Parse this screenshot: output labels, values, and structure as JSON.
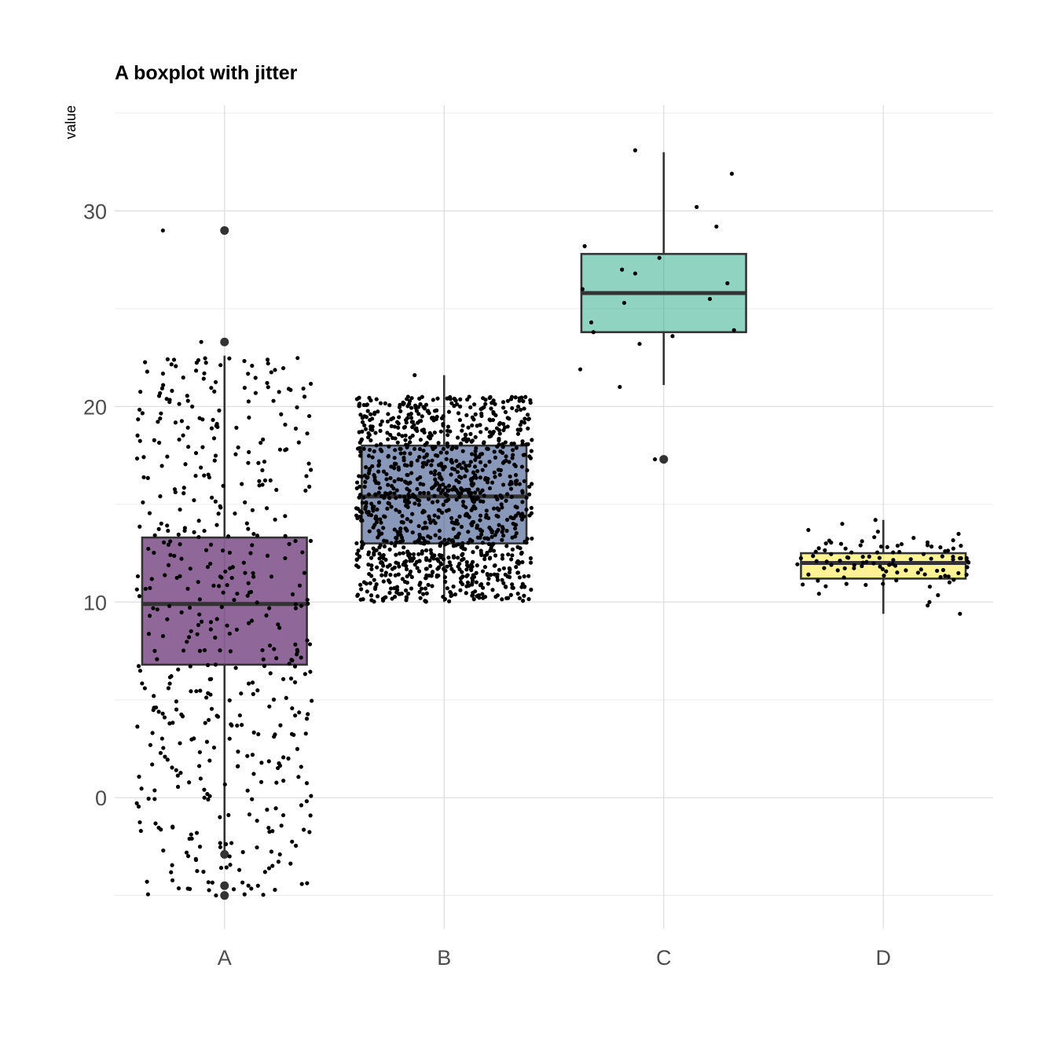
{
  "chart_data": {
    "type": "boxplot",
    "title": "A boxplot with jitter",
    "xlabel": "",
    "ylabel": "value",
    "ylim": [
      -6.7,
      35.4
    ],
    "y_ticks": [
      0,
      10,
      20,
      30
    ],
    "grid": true,
    "legend": "none",
    "categories": [
      "A",
      "B",
      "C",
      "D"
    ],
    "boxes": [
      {
        "name": "A",
        "color": "#440154",
        "fill_alpha": 0.6,
        "q1": 6.8,
        "median": 9.9,
        "q3": 13.3,
        "whisker_low": -2.9,
        "whisker_high": 22.6,
        "outliers": [
          29.0,
          23.3,
          -2.9,
          -4.5,
          -5.0
        ],
        "jitter_n": 500,
        "distribution": "uniform",
        "range": [
          -5.0,
          22.5
        ],
        "jitter_extra": [
          29.0,
          23.3,
          -5.0,
          -4.5
        ]
      },
      {
        "name": "B",
        "color": "#3B528B",
        "fill_alpha": 0.6,
        "q1": 13.0,
        "median": 15.4,
        "q3": 18.0,
        "whisker_low": 10.0,
        "whisker_high": 21.6,
        "outliers": [],
        "jitter_n": 1200,
        "distribution": "uniform",
        "range": [
          10.0,
          20.5
        ],
        "jitter_extra": [
          21.6
        ]
      },
      {
        "name": "C",
        "color": "#21A784",
        "fill_alpha": 0.5,
        "q1": 23.8,
        "median": 25.8,
        "q3": 27.8,
        "whisker_low": 21.1,
        "whisker_high": 33.0,
        "outliers": [
          17.3
        ],
        "jitter_points": [
          [
            -0.38,
            21.9
          ],
          [
            -0.37,
            26.0
          ],
          [
            -0.36,
            28.2
          ],
          [
            -0.33,
            24.3
          ],
          [
            -0.32,
            23.8
          ],
          [
            -0.2,
            21.0
          ],
          [
            -0.19,
            27.0
          ],
          [
            -0.18,
            25.3
          ],
          [
            -0.13,
            26.8
          ],
          [
            -0.13,
            33.1
          ],
          [
            -0.11,
            23.2
          ],
          [
            -0.04,
            17.3
          ],
          [
            -0.02,
            27.6
          ],
          [
            0.04,
            23.6
          ],
          [
            0.15,
            30.2
          ],
          [
            0.21,
            25.5
          ],
          [
            0.24,
            29.2
          ],
          [
            0.29,
            26.3
          ],
          [
            0.31,
            31.9
          ],
          [
            0.32,
            23.9
          ]
        ]
      },
      {
        "name": "D",
        "color": "#FDE725",
        "fill_alpha": 0.5,
        "q1": 11.2,
        "median": 12.0,
        "q3": 12.5,
        "whisker_low": 9.4,
        "whisker_high": 14.2,
        "outliers": [],
        "jitter_n": 100,
        "distribution": "normal",
        "center": 11.9,
        "spread": 0.75,
        "range": [
          9.3,
          14.3
        ],
        "jitter_extra": [
          14.2,
          10.0,
          9.4,
          14.0,
          13.6
        ]
      }
    ]
  }
}
